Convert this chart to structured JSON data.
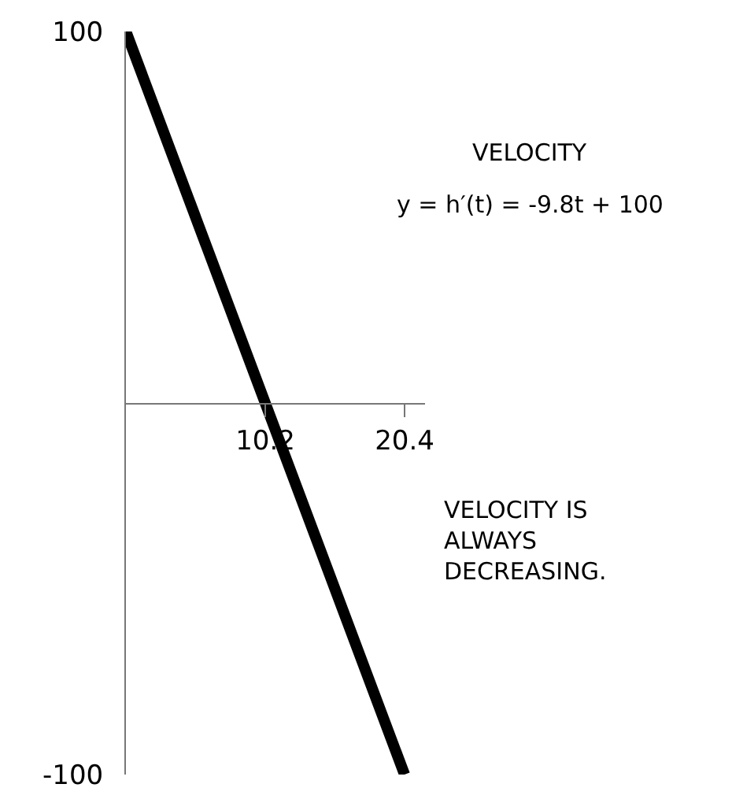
{
  "chart_data": {
    "type": "line",
    "x": [
      0,
      20.4
    ],
    "series": [
      {
        "color": "#000000",
        "values": [
          100,
          -100
        ]
      }
    ],
    "xlim": [
      0,
      21.9
    ],
    "ylim": [
      -100,
      100
    ],
    "xticks": [
      10.2,
      20.4
    ],
    "yticks": [
      100,
      -100
    ],
    "grid": false,
    "marker": "none",
    "line_style": "solid",
    "annotations": [
      "VELOCITY",
      "y = h′(t) = -9.8t + 100",
      "VELOCITY IS\nALWAYS\nDECREASING."
    ]
  }
}
